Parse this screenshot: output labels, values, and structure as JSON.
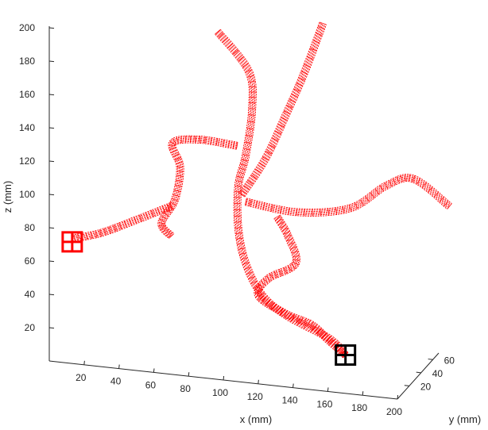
{
  "chart_data": {
    "type": "line3d",
    "title": "",
    "xlabel": "x (mm)",
    "ylabel": "y (mm)",
    "zlabel": "z (mm)",
    "xlim": [
      0,
      200
    ],
    "ylim": [
      0,
      70
    ],
    "zlim": [
      0,
      200
    ],
    "x_ticks": [
      "20",
      "40",
      "60",
      "80",
      "100",
      "120",
      "140",
      "160",
      "180",
      "200"
    ],
    "y_ticks": [
      "20",
      "40",
      "60"
    ],
    "z_ticks": [
      "20",
      "40",
      "60",
      "80",
      "100",
      "120",
      "140",
      "160",
      "180",
      "200"
    ],
    "grid": false,
    "vessel_color": "#ff0000",
    "markers": [
      {
        "name": "start-marker",
        "color": "#ff0000",
        "x": 3,
        "y": 30,
        "z": 60
      },
      {
        "name": "end-marker",
        "color": "#000000",
        "x": 160,
        "y": 30,
        "z": 10
      }
    ],
    "series": [
      {
        "points": [
          [
            160,
            30,
            10
          ],
          [
            150,
            32,
            18
          ],
          [
            125,
            34,
            28
          ],
          [
            110,
            36,
            38
          ],
          [
            100,
            38,
            55
          ],
          [
            95,
            40,
            75
          ],
          [
            95,
            40,
            100
          ],
          [
            100,
            38,
            120
          ],
          [
            105,
            34,
            150
          ],
          [
            105,
            28,
            175
          ],
          [
            90,
            20,
            200
          ]
        ]
      },
      {
        "points": [
          [
            97,
            40,
            95
          ],
          [
            112,
            36,
            120
          ],
          [
            125,
            34,
            150
          ],
          [
            135,
            34,
            175
          ],
          [
            145,
            36,
            205
          ]
        ]
      },
      {
        "points": [
          [
            100,
            38,
            92
          ],
          [
            130,
            36,
            90
          ],
          [
            160,
            38,
            95
          ],
          [
            180,
            40,
            110
          ],
          [
            195,
            42,
            115
          ],
          [
            215,
            44,
            100
          ]
        ]
      },
      {
        "points": [
          [
            160,
            30,
            10
          ],
          [
            150,
            30,
            18
          ],
          [
            140,
            32,
            25
          ],
          [
            125,
            32,
            30
          ],
          [
            110,
            30,
            40
          ],
          [
            115,
            32,
            50
          ],
          [
            130,
            34,
            60
          ],
          [
            125,
            36,
            75
          ],
          [
            118,
            38,
            85
          ]
        ]
      },
      {
        "points": [
          [
            95,
            38,
            125
          ],
          [
            75,
            34,
            128
          ],
          [
            60,
            32,
            125
          ],
          [
            65,
            30,
            112
          ],
          [
            62,
            30,
            92
          ],
          [
            55,
            28,
            78
          ],
          [
            60,
            30,
            70
          ]
        ]
      },
      {
        "points": [
          [
            60,
            30,
            88
          ],
          [
            40,
            28,
            78
          ],
          [
            20,
            28,
            68
          ],
          [
            3,
            30,
            62
          ]
        ]
      }
    ]
  }
}
